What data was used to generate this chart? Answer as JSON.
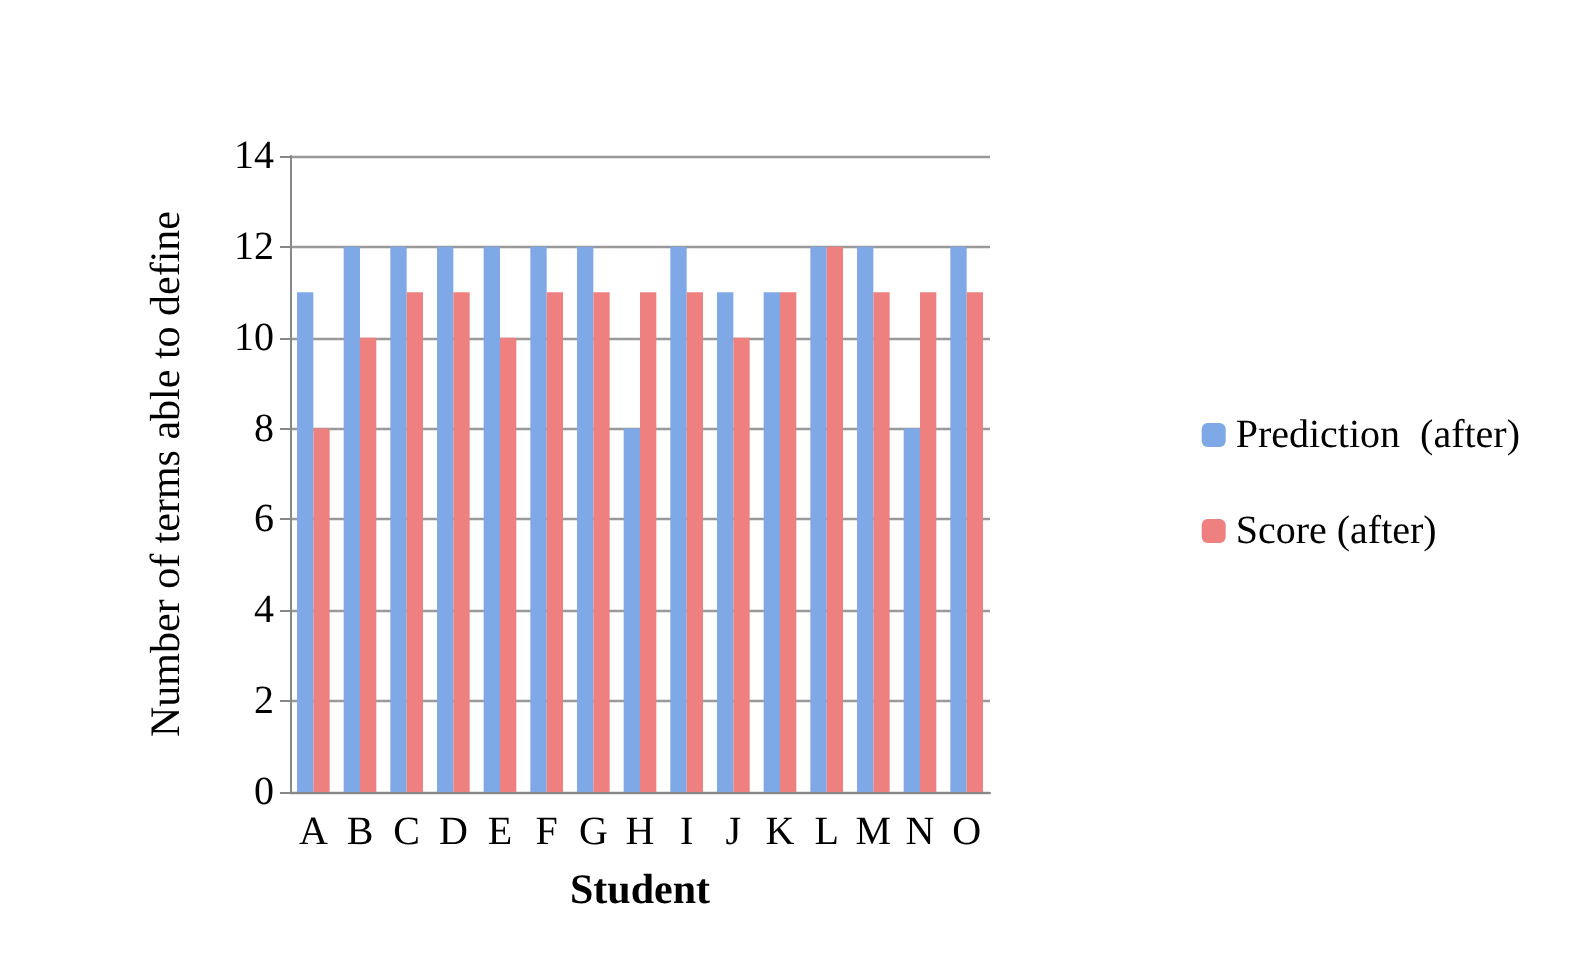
{
  "chart_data": {
    "type": "bar",
    "xlabel": "Student",
    "ylabel": "Number of terms able to define",
    "categories": [
      "A",
      "B",
      "C",
      "D",
      "E",
      "F",
      "G",
      "H",
      "I",
      "J",
      "K",
      "L",
      "M",
      "N",
      "O"
    ],
    "series": [
      {
        "name": "Prediction  (after)",
        "color": "#7ea8e6",
        "values": [
          11,
          12,
          12,
          12,
          12,
          12,
          12,
          8,
          12,
          11,
          11,
          12,
          12,
          8,
          12
        ]
      },
      {
        "name": "Score (after)",
        "color": "#ee8180",
        "values": [
          8,
          10,
          11,
          11,
          10,
          11,
          11,
          11,
          11,
          10,
          11,
          12,
          11,
          11,
          11
        ]
      }
    ],
    "ylim": [
      0,
      14
    ],
    "yticks": [
      0,
      2,
      4,
      6,
      8,
      10,
      12,
      14
    ],
    "grid": "y",
    "legend": "right"
  }
}
